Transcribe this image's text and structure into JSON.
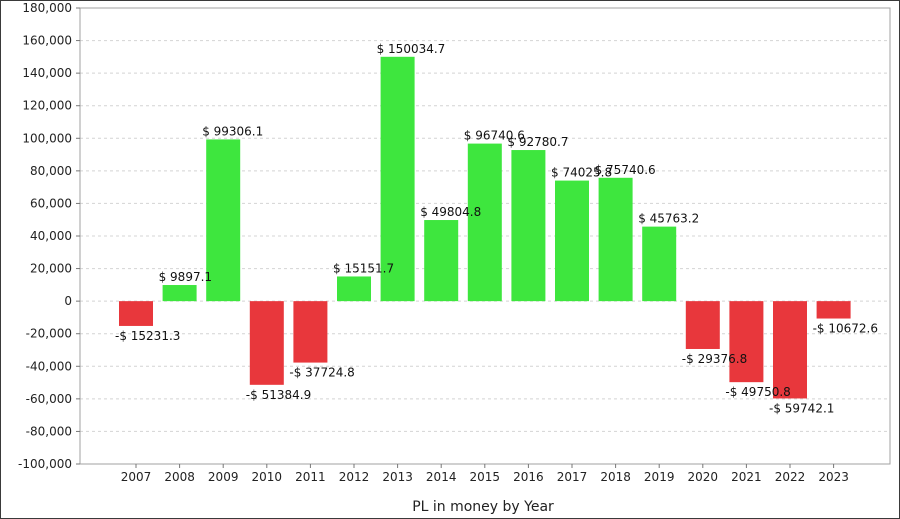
{
  "chart_data": {
    "type": "bar",
    "title": "",
    "xlabel": "PL in money by Year",
    "ylabel": "",
    "ylim": [
      -100000,
      180000
    ],
    "ytick_step": 20000,
    "ytick_labels": [
      "-100,000",
      "-80,000",
      "-60,000",
      "-40,000",
      "-20,000",
      "0",
      "20,000",
      "40,000",
      "60,000",
      "80,000",
      "100,000",
      "120,000",
      "140,000",
      "160,000",
      "180,000"
    ],
    "grid": true,
    "legend": "none",
    "categories": [
      "2007",
      "2008",
      "2009",
      "2010",
      "2011",
      "2012",
      "2013",
      "2014",
      "2015",
      "2016",
      "2017",
      "2018",
      "2019",
      "2020",
      "2021",
      "2022",
      "2023"
    ],
    "values": [
      -15231.3,
      9897.1,
      99306.1,
      -51384.9,
      -37724.8,
      15151.7,
      150034.7,
      49804.8,
      96740.6,
      92780.7,
      74025.8,
      75740.6,
      45763.2,
      -29376.8,
      -49750.8,
      -59742.1,
      -10672.6
    ],
    "data_labels": [
      "-$ 15231.3",
      "$ 9897.1",
      "$ 99306.1",
      "-$ 51384.9",
      "-$ 37724.8",
      "$ 15151.7",
      "$ 150034.7",
      "$ 49804.8",
      "$ 96740.6",
      "$ 92780.7",
      "$ 74025.8",
      "$ 75740.6",
      "$ 45763.2",
      "-$ 29376.8",
      "-$ 49750.8",
      "-$ 59742.1",
      "-$ 10672.6"
    ],
    "colors": {
      "positive": "#3ee63e",
      "negative": "#e8373c",
      "grid": "#d4d4d4",
      "axis": "#777777"
    }
  }
}
